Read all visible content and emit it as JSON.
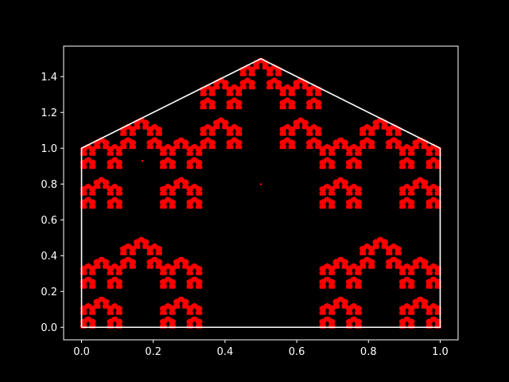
{
  "chart_data": {
    "type": "scatter",
    "title": "",
    "xlabel": "",
    "ylabel": "",
    "xlim": [
      -0.05,
      1.05
    ],
    "ylim": [
      -0.07,
      1.57
    ],
    "grid": false,
    "legend": "none",
    "x_ticks": [
      "0.0",
      "0.2",
      "0.4",
      "0.6",
      "0.8",
      "1.0"
    ],
    "x_tick_values": [
      0.0,
      0.2,
      0.4,
      0.6,
      0.8,
      1.0
    ],
    "y_ticks": [
      "0.0",
      "0.2",
      "0.4",
      "0.6",
      "0.8",
      "1.0",
      "1.2",
      "1.4"
    ],
    "y_tick_values": [
      0.0,
      0.2,
      0.4,
      0.6,
      0.8,
      1.0,
      1.2,
      1.4
    ],
    "outline": {
      "x": [
        0,
        1,
        1,
        0.5,
        0,
        0
      ],
      "y": [
        0,
        0,
        1,
        1.5,
        1,
        0
      ],
      "color": "#ffffff"
    },
    "points": {
      "color": "#ff0000",
      "note_type": "iterated-function-system attractor of the pentagon house shape",
      "ifs_ratio": 0.3333333,
      "ifs_vertices": [
        [
          0,
          0
        ],
        [
          1,
          0
        ],
        [
          1,
          1
        ],
        [
          0.5,
          1.5
        ],
        [
          0,
          1
        ]
      ],
      "stray_points": [
        [
          0.17,
          0.93
        ],
        [
          0.5,
          0.8
        ]
      ]
    }
  },
  "colors": {
    "background": "#000000",
    "foreground": "#ffffff",
    "points": "#ff0000"
  }
}
